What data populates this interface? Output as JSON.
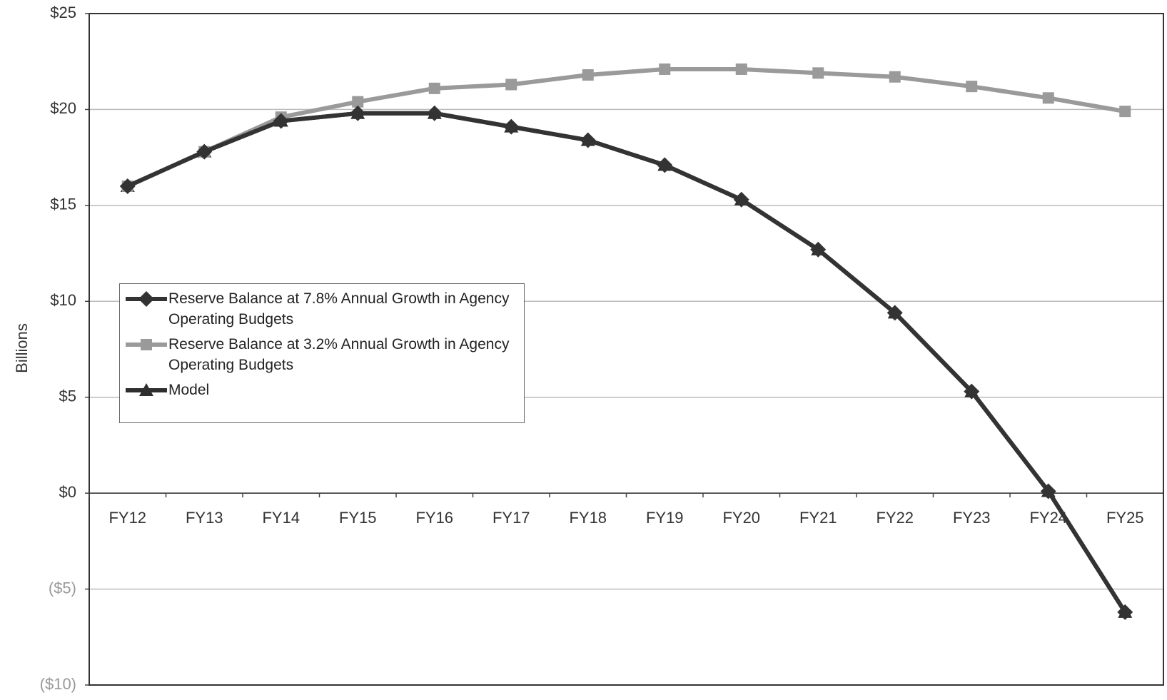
{
  "chart_data": {
    "type": "line",
    "y_label": "Billions",
    "categories": [
      "FY12",
      "FY13",
      "FY14",
      "FY15",
      "FY16",
      "FY17",
      "FY18",
      "FY19",
      "FY20",
      "FY21",
      "FY22",
      "FY23",
      "FY24",
      "FY25"
    ],
    "series": [
      {
        "name": "Model",
        "color": "#2e2e2e",
        "marker": "triangle",
        "values": [
          16.0,
          17.8,
          19.4,
          19.8,
          19.8,
          19.1,
          18.4,
          17.1,
          15.3,
          12.7,
          9.4,
          5.3,
          0.1,
          -6.2
        ]
      },
      {
        "name": "Reserve Balance at 3.2% Annual Growth in Agency Operating Budgets",
        "color": "#9a9a9a",
        "marker": "square",
        "values": [
          16.0,
          17.8,
          19.6,
          20.4,
          21.1,
          21.3,
          21.8,
          22.1,
          22.1,
          21.9,
          21.7,
          21.2,
          20.6,
          19.9
        ]
      },
      {
        "name": "Reserve Balance at 7.8% Annual Growth in Agency Operating Budgets",
        "color": "#333333",
        "marker": "diamond",
        "values": [
          16.0,
          17.8,
          19.4,
          19.8,
          19.8,
          19.1,
          18.4,
          17.1,
          15.3,
          12.7,
          9.4,
          5.3,
          0.1,
          -6.2
        ]
      }
    ],
    "legend_order": [
      2,
      1,
      0
    ],
    "ylim": [
      -10,
      25
    ],
    "yticks": [
      {
        "value": -10,
        "label": "($10)"
      },
      {
        "value": -5,
        "label": "($5)"
      },
      {
        "value": 0,
        "label": "$0"
      },
      {
        "value": 5,
        "label": "$5"
      },
      {
        "value": 10,
        "label": "$10"
      },
      {
        "value": 15,
        "label": "$15"
      },
      {
        "value": 20,
        "label": "$20"
      },
      {
        "value": 25,
        "label": "$25"
      }
    ],
    "grid": true
  }
}
